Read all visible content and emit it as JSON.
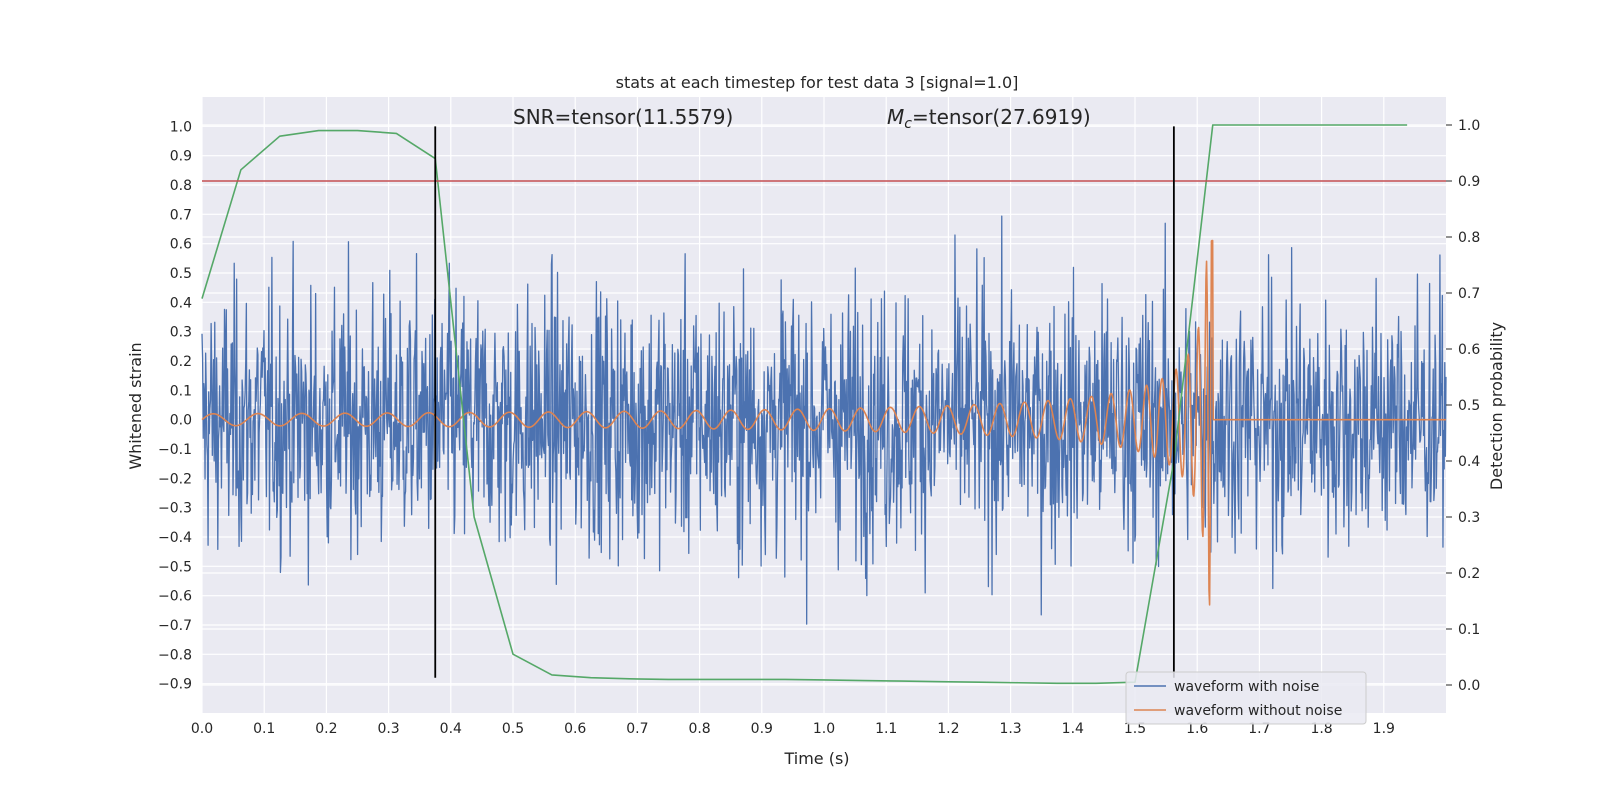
{
  "chart_data": {
    "type": "line",
    "title": "stats at each timestep for test data 3 [signal=1.0]",
    "xlabel": "Time (s)",
    "ylabel_left": "Whitened strain",
    "ylabel_right": "Detection probability",
    "xlim": [
      0.0,
      2.0
    ],
    "ylim_left": [
      -1.0,
      1.1
    ],
    "ylim_right": [
      -0.05,
      1.05
    ],
    "x_ticks": [
      "0.0",
      "0.1",
      "0.2",
      "0.3",
      "0.4",
      "0.5",
      "0.6",
      "0.7",
      "0.8",
      "0.9",
      "1.0",
      "1.1",
      "1.2",
      "1.3",
      "1.4",
      "1.5",
      "1.6",
      "1.7",
      "1.8",
      "1.9"
    ],
    "y_ticks_left": [
      "1.0",
      "0.9",
      "0.8",
      "0.7",
      "0.6",
      "0.5",
      "0.4",
      "0.3",
      "0.2",
      "0.1",
      "0.0",
      "−0.1",
      "−0.2",
      "−0.3",
      "−0.4",
      "−0.5",
      "−0.6",
      "−0.7",
      "−0.8",
      "−0.9"
    ],
    "y_ticks_right": [
      "1.0",
      "0.9",
      "0.8",
      "0.7",
      "0.6",
      "0.5",
      "0.4",
      "0.3",
      "0.2",
      "0.1",
      "0.0"
    ],
    "grid": true,
    "legend_position": "bottom-right",
    "annotations": {
      "snr": "SNR=tensor(11.5579)",
      "mc_symbol": "M",
      "mc_sub": "c",
      "mc_value": "=tensor(27.6919)"
    },
    "threshold": {
      "axis": "right",
      "y": 0.9,
      "color": "#c44e52"
    },
    "vlines": [
      {
        "x": 0.375,
        "y0": -0.88,
        "y1": 1.0
      },
      {
        "x": 1.5625,
        "y0": -0.88,
        "y1": 1.0
      }
    ],
    "series": [
      {
        "name": "waveform with noise",
        "color": "#4c72b0",
        "axis": "left",
        "generated": {
          "kind": "noise",
          "t_start": 0.0,
          "t_end": 2.0,
          "n": 2048,
          "sigma": 0.22,
          "amp_min": -0.77,
          "amp_max": 0.78
        }
      },
      {
        "name": "waveform without noise",
        "color": "#dd8452",
        "axis": "left",
        "generated": {
          "kind": "chirp",
          "t_start": 0.0,
          "t_merge": 1.625,
          "t_end": 2.0,
          "n": 2048,
          "amp_start": 0.02,
          "amp_peak": 0.65
        }
      },
      {
        "name": "",
        "color": "#55a868",
        "axis": "right",
        "x": [
          0.0,
          0.0625,
          0.125,
          0.1875,
          0.25,
          0.3125,
          0.375,
          0.4375,
          0.5,
          0.5625,
          0.625,
          0.6875,
          0.75,
          0.8125,
          0.875,
          0.9375,
          1.0,
          1.0625,
          1.125,
          1.1875,
          1.25,
          1.3125,
          1.375,
          1.4375,
          1.5,
          1.5625,
          1.625,
          1.6875,
          1.75,
          1.8125,
          1.875,
          1.9375
        ],
        "y": [
          0.69,
          0.92,
          0.98,
          0.99,
          0.99,
          0.985,
          0.94,
          0.3,
          0.055,
          0.018,
          0.013,
          0.011,
          0.01,
          0.01,
          0.01,
          0.01,
          0.009,
          0.008,
          0.007,
          0.006,
          0.005,
          0.004,
          0.003,
          0.003,
          0.005,
          0.4,
          1.0,
          1.0,
          1.0,
          1.0,
          1.0,
          1.0
        ]
      }
    ]
  }
}
